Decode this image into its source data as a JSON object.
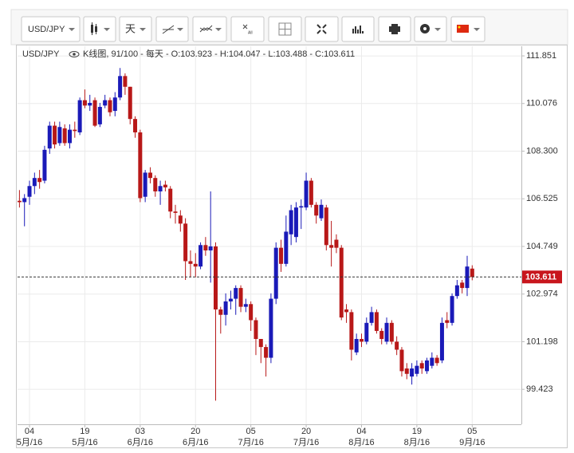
{
  "toolbar": {
    "symbol": "USD/JPY",
    "interval": "天",
    "zoom_all": "All"
  },
  "chart_data": {
    "type": "candlestick",
    "title": "USD/JPY",
    "chart_kind": "K线图, 91/100 - 每天",
    "ohlc_labels": [
      "- O:",
      "- H:",
      "- L:",
      "- C:"
    ],
    "up_color": "#1a1ab8",
    "down_color": "#b81818",
    "grid": true,
    "categories": [
      null,
      null,
      null,
      null,
      null,
      null,
      null,
      null,
      null,
      null,
      null,
      null,
      null,
      null,
      null,
      null,
      null,
      null,
      null,
      null,
      null,
      null,
      null,
      null,
      null,
      null,
      null,
      null,
      null,
      null,
      null,
      null,
      null,
      null,
      null,
      null,
      null,
      null,
      null,
      null,
      null,
      null,
      null,
      null,
      null,
      null,
      null,
      null,
      null,
      null,
      null,
      null,
      null,
      null,
      null,
      null,
      null,
      null,
      null,
      null,
      null,
      null,
      null,
      null,
      null,
      null,
      null,
      null,
      null,
      null,
      null,
      null,
      null,
      null,
      null,
      null,
      null,
      null,
      null,
      null,
      null,
      null,
      null,
      null,
      null,
      null,
      null,
      null,
      null,
      null,
      null
    ],
    "xticks": [
      {
        "value": 2,
        "label": "04",
        "month": "5月/16"
      },
      {
        "value": 13,
        "label": "19",
        "month": "5月/16"
      },
      {
        "value": 24,
        "label": "03",
        "month": "6月/16"
      },
      {
        "value": 35,
        "label": "20",
        "month": "6月/16"
      },
      {
        "value": 46,
        "label": "05",
        "month": "7月/16"
      },
      {
        "value": 57,
        "label": "20",
        "month": "7月/16"
      },
      {
        "value": 68,
        "label": "04",
        "month": "8月/16"
      },
      {
        "value": 79,
        "label": "19",
        "month": "8月/16"
      },
      {
        "value": 90,
        "label": "05",
        "month": "9月/16"
      }
    ],
    "open": [
      106.45,
      106.4,
      106.6,
      107.0,
      107.3,
      107.2,
      108.4,
      109.25,
      108.6,
      109.15,
      108.6,
      109.1,
      109.0,
      110.2,
      110.0,
      110.2,
      109.3,
      110.0,
      110.2,
      109.8,
      110.3,
      111.1,
      110.7,
      109.5,
      109.0,
      106.6,
      107.5,
      107.3,
      106.8,
      107.05,
      106.9,
      106.05,
      105.9,
      105.6,
      104.2,
      104.1,
      104.0,
      104.8,
      104.6,
      104.75,
      102.4,
      102.2,
      102.7,
      102.8,
      103.2,
      102.5,
      102.6,
      102.0,
      101.3,
      101.0,
      100.6,
      102.8,
      104.7,
      104.1,
      105.2,
      105.1,
      106.2,
      106.2,
      107.2,
      106.3,
      105.8,
      106.2,
      104.8,
      105.0,
      104.7,
      102.4,
      102.3,
      100.8,
      101.3,
      101.2,
      101.9,
      102.3,
      101.6,
      101.2,
      101.9,
      101.2,
      100.9,
      100.2,
      99.9,
      100.0,
      100.4,
      100.1,
      100.3,
      100.6,
      100.5,
      102.0,
      101.9,
      102.9,
      103.4,
      103.2,
      103.923
    ],
    "high": [
      106.85,
      106.7,
      107.2,
      107.5,
      107.6,
      108.5,
      109.4,
      109.4,
      109.4,
      109.3,
      109.3,
      109.4,
      110.3,
      110.6,
      110.4,
      110.3,
      110.1,
      110.4,
      110.3,
      110.5,
      111.4,
      111.2,
      110.7,
      109.6,
      109.1,
      107.6,
      107.7,
      107.4,
      107.2,
      107.2,
      107.0,
      106.3,
      106.1,
      105.8,
      104.6,
      104.5,
      104.9,
      105.1,
      106.8,
      104.9,
      102.5,
      103.0,
      103.1,
      103.3,
      103.3,
      102.8,
      102.7,
      102.1,
      101.3,
      101.1,
      103.0,
      104.9,
      105.0,
      105.9,
      106.3,
      106.4,
      106.5,
      107.5,
      107.3,
      106.4,
      106.5,
      106.3,
      105.7,
      105.2,
      104.8,
      102.6,
      102.4,
      101.5,
      101.5,
      102.1,
      102.5,
      102.4,
      101.7,
      102.1,
      102.0,
      101.4,
      101.0,
      100.4,
      100.4,
      100.5,
      100.5,
      100.6,
      100.8,
      100.7,
      102.1,
      102.3,
      103.0,
      103.5,
      103.5,
      104.4,
      104.047
    ],
    "low": [
      106.2,
      105.5,
      106.3,
      106.7,
      106.9,
      107.1,
      108.2,
      108.4,
      108.5,
      108.5,
      108.4,
      108.8,
      108.9,
      109.9,
      109.8,
      109.2,
      109.2,
      109.9,
      109.6,
      109.6,
      110.2,
      110.4,
      109.3,
      108.8,
      106.4,
      106.4,
      107.1,
      106.6,
      106.3,
      106.8,
      105.8,
      105.6,
      105.3,
      103.5,
      103.6,
      103.6,
      103.9,
      104.4,
      103.4,
      99.0,
      101.5,
      101.8,
      102.4,
      102.2,
      102.3,
      102.3,
      101.6,
      100.7,
      100.4,
      99.9,
      100.4,
      102.6,
      103.8,
      104.0,
      104.8,
      104.9,
      105.4,
      106.1,
      106.2,
      105.6,
      105.7,
      104.6,
      104.0,
      104.5,
      102.0,
      101.9,
      100.5,
      100.7,
      101.0,
      101.1,
      101.8,
      101.5,
      101.1,
      101.1,
      101.1,
      100.7,
      99.9,
      99.8,
      99.6,
      99.9,
      100.0,
      100.0,
      100.2,
      100.3,
      100.4,
      101.7,
      101.8,
      102.8,
      103.0,
      102.9,
      103.488
    ],
    "close": [
      106.4,
      106.55,
      107.0,
      107.3,
      107.15,
      108.35,
      109.25,
      108.55,
      109.2,
      108.6,
      109.1,
      109.05,
      110.2,
      110.0,
      110.1,
      109.25,
      109.95,
      110.2,
      109.75,
      110.3,
      111.1,
      110.7,
      109.5,
      109.0,
      106.55,
      107.5,
      107.3,
      106.8,
      107.0,
      106.95,
      106.05,
      106.0,
      105.6,
      104.2,
      104.1,
      104.0,
      104.8,
      104.6,
      104.75,
      102.4,
      102.2,
      102.7,
      102.8,
      103.2,
      102.5,
      102.6,
      102.0,
      101.3,
      101.0,
      100.6,
      102.8,
      104.7,
      104.1,
      105.3,
      106.1,
      106.2,
      106.25,
      107.2,
      106.3,
      105.9,
      106.3,
      104.8,
      104.7,
      104.7,
      102.1,
      102.3,
      100.9,
      101.3,
      101.2,
      101.9,
      102.3,
      101.6,
      101.3,
      101.9,
      101.2,
      100.9,
      100.1,
      100.0,
      100.2,
      100.3,
      100.2,
      100.5,
      100.6,
      100.4,
      101.9,
      101.9,
      102.9,
      103.3,
      103.2,
      104.0,
      103.611
    ],
    "ylim": [
      98.12,
      112.21
    ],
    "yticks": [
      111.851,
      110.076,
      {
        "value": 108.3,
        "label": "108.300"
      },
      106.525,
      104.749,
      102.974,
      101.198,
      99.423
    ]
  }
}
